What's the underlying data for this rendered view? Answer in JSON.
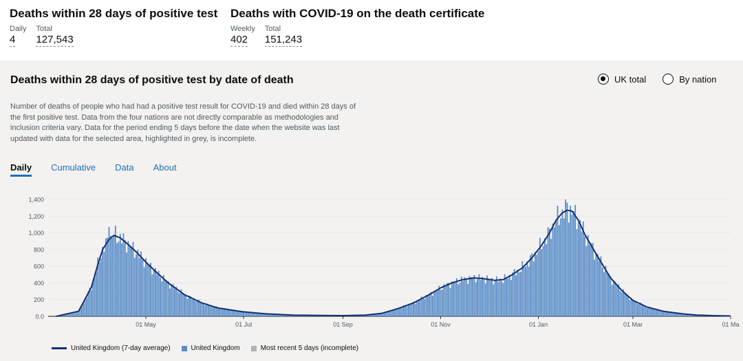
{
  "headline_1": {
    "title": "Deaths within 28 days of positive test",
    "metrics": [
      {
        "label": "Daily",
        "value": "4"
      },
      {
        "label": "Total",
        "value": "127,543"
      }
    ]
  },
  "headline_2": {
    "title": "Deaths with COVID-19 on the death certificate",
    "metrics": [
      {
        "label": "Weekly",
        "value": "402"
      },
      {
        "label": "Total",
        "value": "151,243"
      }
    ]
  },
  "card": {
    "title": "Deaths within 28 days of positive test by date of death",
    "radios": [
      {
        "label": "UK total",
        "checked": true
      },
      {
        "label": "By nation",
        "checked": false
      }
    ],
    "description": "Number of deaths of people who had had a positive test result for COVID-19 and died within 28 days of the first positive test. Data from the four nations are not directly comparable as methodologies and inclusion criteria vary. Data for the period ending 5 days before the date when the website was last updated with data for the selected area, highlighted in grey, is incomplete.",
    "tabs": [
      {
        "label": "Daily",
        "active": true
      },
      {
        "label": "Cumulative"
      },
      {
        "label": "Data"
      },
      {
        "label": "About"
      }
    ]
  },
  "colors": {
    "bar": "#5b8ec9",
    "line": "#12306e",
    "incomplete": "#b1b4b6",
    "link": "#1d70b8"
  },
  "chart_data": {
    "type": "bar",
    "x_ticks": [
      "01 May",
      "01 Jul",
      "01 Sep",
      "01 Nov",
      "01 Jan",
      "01 Mar",
      "01 Ma"
    ],
    "y_ticks": [
      "0.0",
      "200",
      "400",
      "600",
      "800",
      "1,000",
      "1,200",
      "1,400"
    ],
    "ylim": [
      0,
      1400
    ],
    "grid": true,
    "series": [
      {
        "name": "United Kingdom (7-day average)",
        "kind": "line",
        "x": [
          "2020-03-06",
          "2020-03-20",
          "2020-03-28",
          "2020-04-01",
          "2020-04-04",
          "2020-04-08",
          "2020-04-11",
          "2020-04-15",
          "2020-04-20",
          "2020-04-25",
          "2020-05-01",
          "2020-05-08",
          "2020-05-15",
          "2020-05-25",
          "2020-06-05",
          "2020-06-15",
          "2020-06-30",
          "2020-07-15",
          "2020-08-01",
          "2020-08-20",
          "2020-09-01",
          "2020-09-15",
          "2020-09-25",
          "2020-10-05",
          "2020-10-15",
          "2020-10-25",
          "2020-11-01",
          "2020-11-08",
          "2020-11-15",
          "2020-11-22",
          "2020-11-28",
          "2020-12-05",
          "2020-12-10",
          "2020-12-15",
          "2020-12-22",
          "2020-12-28",
          "2021-01-03",
          "2021-01-08",
          "2021-01-12",
          "2021-01-16",
          "2021-01-19",
          "2021-01-22",
          "2021-01-26",
          "2021-01-30",
          "2021-02-05",
          "2021-02-10",
          "2021-02-15",
          "2021-02-22",
          "2021-03-01",
          "2021-03-10",
          "2021-03-20",
          "2021-04-01",
          "2021-04-10",
          "2021-04-20",
          "2021-05-01"
        ],
        "values": [
          0,
          60,
          350,
          620,
          800,
          920,
          970,
          940,
          860,
          770,
          650,
          520,
          400,
          260,
          160,
          100,
          55,
          30,
          15,
          10,
          8,
          15,
          35,
          90,
          160,
          260,
          340,
          400,
          440,
          460,
          450,
          430,
          440,
          490,
          580,
          700,
          850,
          1000,
          1150,
          1240,
          1270,
          1260,
          1150,
          980,
          780,
          620,
          460,
          310,
          190,
          110,
          60,
          30,
          15,
          8,
          4
        ]
      },
      {
        "name": "United Kingdom",
        "kind": "bar",
        "note": "daily values follow the 7-day average with day-to-day variation; peaks ~1,070 (Apr) and ~1,360 (Jan)"
      },
      {
        "name": "Most recent 5 days (incomplete)",
        "kind": "bar"
      }
    ]
  }
}
